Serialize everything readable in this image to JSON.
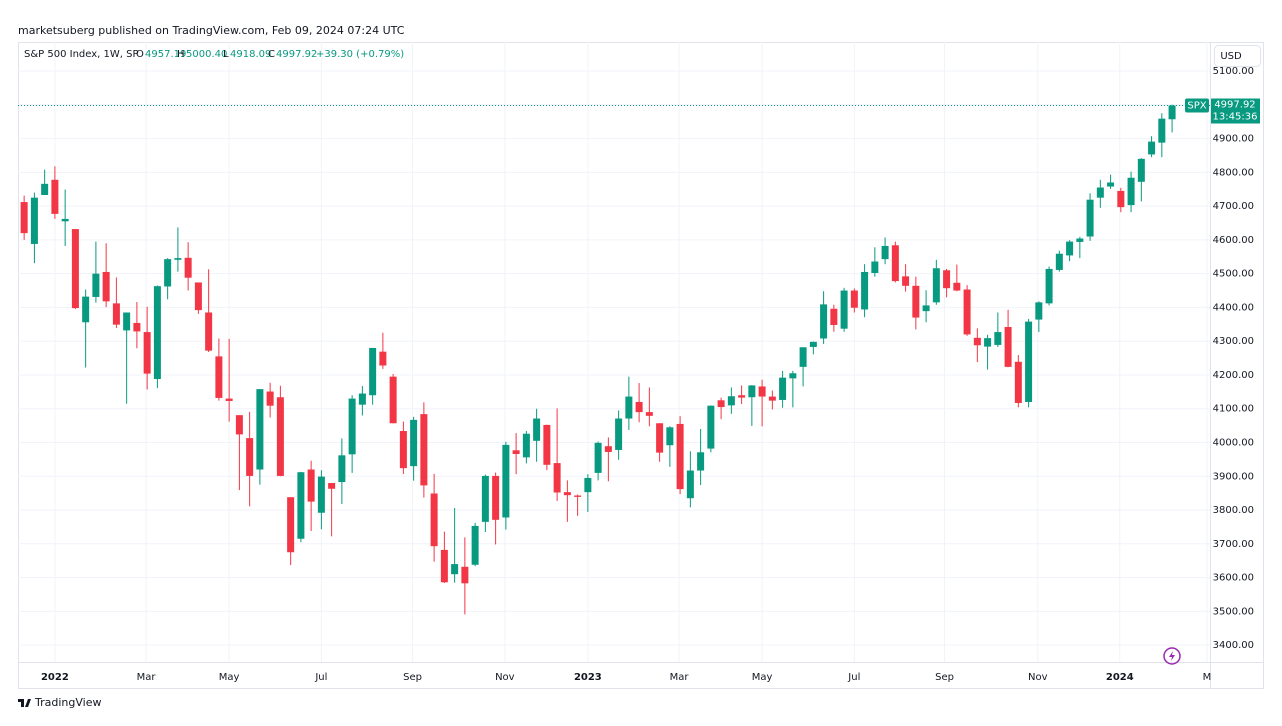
{
  "header": {
    "publisher": "marketsuberg published on TradingView.com, Feb 09, 2024 07:24 UTC",
    "symbol": "S&P 500 Index, 1W, SP",
    "o_key": "O",
    "o_value": "4957.19",
    "h_key": "H",
    "h_value": "5000.40",
    "l_key": "L",
    "l_value": "4918.09",
    "c_key": "C",
    "c_value": "4997.92",
    "change": "+39.30 (+0.79%)",
    "currency": "USD",
    "ticker": "SPX",
    "last_price": "4997.92",
    "countdown": "13:45:36",
    "logo": "TradingView"
  },
  "chart_data": {
    "type": "candlestick",
    "up_color": "#089981",
    "down_color": "#f23645",
    "grid": true,
    "open": [
      4712,
      4588,
      4733,
      4778,
      4655,
      4632,
      4356,
      4431,
      4505,
      4412,
      4332,
      4354,
      4327,
      4188,
      4462,
      4541,
      4547,
      4474,
      4385,
      4255,
      4130,
      4081,
      4013,
      3920,
      4151,
      4134,
      3838,
      3715,
      3920,
      3792,
      3880,
      3883,
      3965,
      4112,
      4140,
      4269,
      4195,
      4034,
      3930,
      4084,
      3849,
      3682,
      3610,
      3632,
      3638,
      3765,
      3901,
      3778,
      3977,
      3956,
      4005,
      4052,
      3939,
      3853,
      3843,
      3853,
      3910,
      3989,
      3978,
      4071,
      4120,
      4090,
      4057,
      3992,
      4055,
      3835,
      3917,
      3982,
      4125,
      4110,
      4140,
      4134,
      4166,
      4136,
      4126,
      4190,
      4224,
      4283,
      4308,
      4396,
      4337,
      4450,
      4394,
      4502,
      4543,
      4584,
      4492,
      4464,
      4389,
      4415,
      4510,
      4473,
      4453,
      4310,
      4284,
      4289,
      4342,
      4239,
      4120,
      4364,
      4412,
      4511,
      4554,
      4594,
      4610,
      4725,
      4758,
      4745,
      4703,
      4772,
      4853,
      4888,
      4957.19
    ],
    "high": [
      4731,
      4740,
      4808,
      4818,
      4749,
      4632,
      4453,
      4595,
      4590,
      4489,
      4385,
      4416,
      4402,
      4465,
      4546,
      4637,
      4593,
      4471,
      4513,
      4308,
      4307,
      4081,
      4091,
      4158,
      4177,
      4168,
      3838,
      3913,
      3946,
      3918,
      3880,
      4012,
      4140,
      4167,
      4280,
      4325,
      4203,
      4062,
      4076,
      4119,
      3907,
      3736,
      3806,
      3719,
      3762,
      3905,
      3911,
      4002,
      4028,
      4034,
      4100,
      4053,
      4101,
      3888,
      3846,
      3906,
      4003,
      4015,
      4095,
      4195,
      4176,
      4163,
      4057,
      4048,
      4078,
      3974,
      4040,
      4110,
      4133,
      4163,
      4169,
      4170,
      4186,
      4154,
      4212,
      4212,
      4282,
      4299,
      4448,
      4408,
      4458,
      4456,
      4528,
      4578,
      4607,
      4595,
      4528,
      4491,
      4451,
      4541,
      4514,
      4527,
      4466,
      4338,
      4319,
      4385,
      4393,
      4259,
      4366,
      4418,
      4521,
      4568,
      4599,
      4609,
      4738,
      4778,
      4793,
      4754,
      4802,
      4842,
      4907,
      4975,
      5000.4
    ],
    "low": [
      4600,
      4531,
      4733,
      4662,
      4582,
      4395,
      4222,
      4414,
      4401,
      4339,
      4115,
      4279,
      4157,
      4161,
      4424,
      4506,
      4450,
      4381,
      4268,
      4124,
      4062,
      3859,
      3811,
      3875,
      4074,
      3900,
      3637,
      3705,
      3738,
      3743,
      3722,
      3818,
      3910,
      4080,
      4112,
      4218,
      4057,
      3907,
      3887,
      3837,
      3647,
      3584,
      3585,
      3491,
      3634,
      3735,
      3698,
      3742,
      3906,
      3938,
      3943,
      3918,
      3827,
      3765,
      3783,
      3794,
      3888,
      3885,
      3949,
      4037,
      4060,
      4048,
      3943,
      3928,
      3847,
      3808,
      3874,
      3971,
      4069,
      4085,
      4114,
      4049,
      4048,
      4098,
      4103,
      4104,
      4166,
      4261,
      4292,
      4328,
      4328,
      4385,
      4371,
      4491,
      4528,
      4474,
      4447,
      4335,
      4356,
      4408,
      4430,
      4448,
      4316,
      4238,
      4216,
      4283,
      4223,
      4104,
      4104,
      4327,
      4406,
      4506,
      4537,
      4546,
      4597,
      4695,
      4751,
      4682,
      4682,
      4714,
      4845,
      4845,
      4918.09
    ],
    "close": [
      4620,
      4725,
      4766,
      4677,
      4662,
      4398,
      4432,
      4500,
      4418,
      4349,
      4385,
      4329,
      4204,
      4463,
      4543,
      4546,
      4488,
      4392,
      4272,
      4132,
      4123,
      4024,
      3901,
      4158,
      4109,
      3901,
      3675,
      3912,
      3825,
      3899,
      3863,
      3962,
      4130,
      4145,
      4280,
      4228,
      4057,
      3924,
      4067,
      3873,
      3693,
      3586,
      3640,
      3583,
      3753,
      3901,
      3771,
      3993,
      3966,
      4026,
      4071,
      3934,
      3852,
      3844,
      3839,
      3895,
      3999,
      3972,
      4071,
      4136,
      4090,
      4079,
      3970,
      4045,
      3862,
      3917,
      3971,
      4109,
      4105,
      4137,
      4133,
      4169,
      4136,
      4124,
      4192,
      4205,
      4282,
      4298,
      4409,
      4348,
      4450,
      4399,
      4505,
      4536,
      4582,
      4478,
      4464,
      4370,
      4406,
      4516,
      4457,
      4450,
      4320,
      4288,
      4309,
      4327,
      4224,
      4117,
      4358,
      4415,
      4514,
      4559,
      4595,
      4604,
      4719,
      4755,
      4770,
      4697,
      4784,
      4840,
      4891,
      4959,
      4997.92
    ],
    "xlim": [
      -0.6,
      115.7
    ],
    "xticks": [
      {
        "value": 3.0,
        "label": "2022"
      },
      {
        "value": 11.9,
        "label": "Mar"
      },
      {
        "value": 20.0,
        "label": "May"
      },
      {
        "value": 29.0,
        "label": "Jul"
      },
      {
        "value": 37.9,
        "label": "Sep"
      },
      {
        "value": 46.9,
        "label": "Nov"
      },
      {
        "value": 55.0,
        "label": "2023"
      },
      {
        "value": 63.9,
        "label": "Mar"
      },
      {
        "value": 72.0,
        "label": "May"
      },
      {
        "value": 81.0,
        "label": "Jul"
      },
      {
        "value": 89.8,
        "label": "Sep"
      },
      {
        "value": 98.9,
        "label": "Nov"
      },
      {
        "value": 106.9,
        "label": "2024"
      },
      {
        "value": 115.4,
        "label": "M"
      }
    ],
    "ylim": [
      3350,
      5186
    ],
    "yticks": [
      {
        "value": 3400,
        "label": "3400.00"
      },
      {
        "value": 3500,
        "label": "3500.00"
      },
      {
        "value": 3600,
        "label": "3600.00"
      },
      {
        "value": 3700,
        "label": "3700.00"
      },
      {
        "value": 3800,
        "label": "3800.00"
      },
      {
        "value": 3900,
        "label": "3900.00"
      },
      {
        "value": 4000,
        "label": "4000.00"
      },
      {
        "value": 4100,
        "label": "4100.00"
      },
      {
        "value": 4200,
        "label": "4200.00"
      },
      {
        "value": 4300,
        "label": "4300.00"
      },
      {
        "value": 4400,
        "label": "4400.00"
      },
      {
        "value": 4500,
        "label": "4500.00"
      },
      {
        "value": 4600,
        "label": "4600.00"
      },
      {
        "value": 4700,
        "label": "4700.00"
      },
      {
        "value": 4800,
        "label": "4800.00"
      },
      {
        "value": 4900,
        "label": "4900.00"
      },
      {
        "value": 5000,
        "label": "5000.00"
      },
      {
        "value": 5100,
        "label": "5100.00"
      }
    ]
  }
}
